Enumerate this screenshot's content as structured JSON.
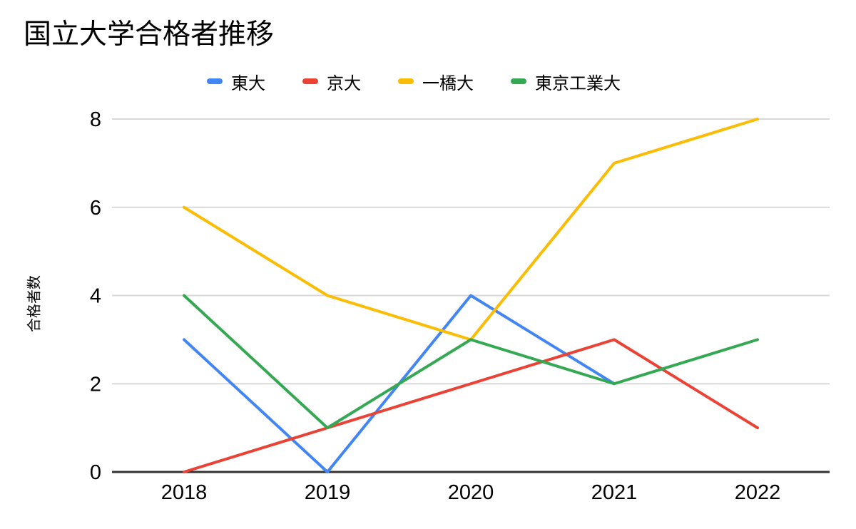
{
  "chart_data": {
    "type": "line",
    "title": "国立大学合格者推移",
    "xlabel": "",
    "ylabel": "合格者数",
    "categories": [
      "2018",
      "2019",
      "2020",
      "2021",
      "2022"
    ],
    "series": [
      {
        "name": "東大",
        "color": "#4285F4",
        "values": [
          3,
          0,
          4,
          2,
          null
        ]
      },
      {
        "name": "京大",
        "color": "#EA4335",
        "values": [
          0,
          1,
          2,
          3,
          1
        ]
      },
      {
        "name": "一橋大",
        "color": "#FBBC04",
        "values": [
          6,
          4,
          3,
          7,
          8
        ]
      },
      {
        "name": "東京工業大",
        "color": "#34A853",
        "values": [
          4,
          1,
          3,
          2,
          3
        ]
      }
    ],
    "ylim": [
      0,
      8
    ],
    "yticks": [
      0,
      2,
      4,
      6,
      8
    ],
    "grid": true,
    "legend_position": "top",
    "background_color": "#ffffff",
    "axis_color": "#333333",
    "gridline_color": "#d9d9d9",
    "line_width": 4
  }
}
